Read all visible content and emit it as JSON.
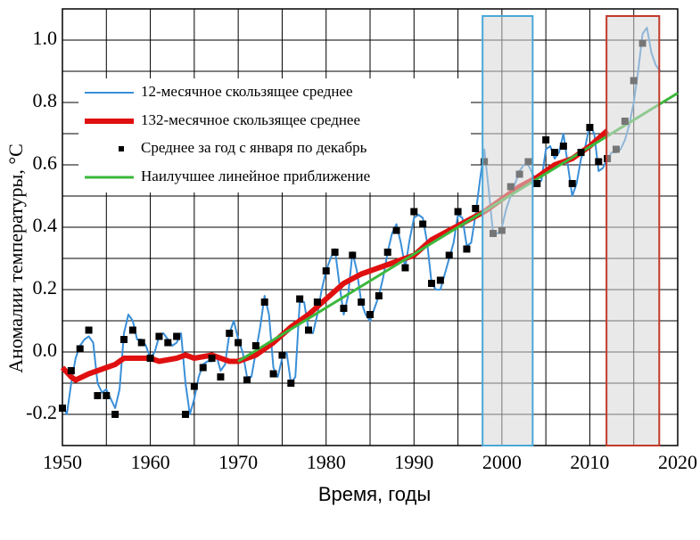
{
  "chart_data": {
    "type": "line",
    "xlabel": "Время, годы",
    "ylabel": "Аномалии температуры, °C",
    "xlim": [
      1950,
      2020
    ],
    "ylim": [
      -0.3,
      1.1
    ],
    "xticks": [
      1950,
      1960,
      1970,
      1980,
      1990,
      2000,
      2010,
      2020
    ],
    "yticks": [
      -0.2,
      {
        "value": 0,
        "label": "0.0"
      },
      0.2,
      0.4,
      0.6,
      0.8,
      {
        "value": 1,
        "label": "1.0"
      }
    ],
    "xgrid": [
      1955,
      1965,
      1975,
      1985,
      1995,
      2005,
      2015
    ],
    "ygrid": [
      -0.1,
      0.1,
      0.3,
      0.5,
      0.7,
      0.9
    ],
    "grid": true,
    "legend": "upper left",
    "highlights": [
      {
        "range": [
          1997.8,
          2003.5
        ],
        "color": "#4aa8d8"
      },
      {
        "range": [
          2011.9,
          2017.9
        ],
        "color": "#c0392b"
      }
    ],
    "series": [
      {
        "name": "12-месячное скользящее среднее",
        "color": "#3a8fd8",
        "style": "line",
        "line_width": 2,
        "x": [
          1950,
          1950.5,
          1951,
          1951.5,
          1952,
          1952.5,
          1953,
          1953.5,
          1954,
          1954.5,
          1955,
          1955.5,
          1956,
          1956.5,
          1957,
          1957.5,
          1958,
          1958.5,
          1959,
          1959.5,
          1960,
          1960.5,
          1961,
          1961.5,
          1962,
          1962.5,
          1963,
          1963.5,
          1964,
          1964.5,
          1965,
          1965.5,
          1966,
          1966.5,
          1967,
          1967.5,
          1968,
          1968.5,
          1969,
          1969.5,
          1970,
          1970.5,
          1971,
          1971.5,
          1972,
          1972.5,
          1973,
          1973.5,
          1974,
          1974.5,
          1975,
          1975.5,
          1976,
          1976.5,
          1977,
          1977.5,
          1978,
          1978.5,
          1979,
          1979.5,
          1980,
          1980.5,
          1981,
          1981.5,
          1982,
          1982.5,
          1983,
          1983.5,
          1984,
          1984.5,
          1985,
          1985.5,
          1986,
          1986.5,
          1987,
          1987.5,
          1988,
          1988.5,
          1989,
          1989.5,
          1990,
          1990.5,
          1991,
          1991.5,
          1992,
          1992.5,
          1993,
          1993.5,
          1994,
          1994.5,
          1995,
          1995.5,
          1996,
          1996.5,
          1997,
          1997.5,
          1998,
          1998.5,
          1999,
          1999.5,
          2000,
          2000.5,
          2001,
          2001.5,
          2002,
          2002.5,
          2003,
          2003.5,
          2004,
          2004.5,
          2005,
          2005.5,
          2006,
          2006.5,
          2007,
          2007.5,
          2008,
          2008.5,
          2009,
          2009.5,
          2010,
          2010.5,
          2011,
          2011.5,
          2012,
          2012.5,
          2013,
          2013.5,
          2014,
          2014.5,
          2015,
          2015.5,
          2016,
          2016.5,
          2017,
          2017.5,
          2018
        ],
        "values": [
          -0.17,
          -0.2,
          -0.1,
          -0.02,
          0.02,
          0.04,
          0.05,
          0.03,
          -0.1,
          -0.13,
          -0.12,
          -0.15,
          -0.18,
          -0.12,
          0.06,
          0.12,
          0.1,
          0.04,
          0.04,
          0.02,
          -0.02,
          0,
          0.05,
          0.06,
          0.04,
          0.02,
          0.03,
          0.06,
          -0.1,
          -0.2,
          -0.15,
          -0.08,
          -0.04,
          -0.03,
          -0.03,
          -0.01,
          -0.06,
          -0.04,
          0.06,
          0.1,
          0.04,
          0,
          -0.08,
          -0.08,
          0,
          0.08,
          0.18,
          0.12,
          -0.05,
          -0.08,
          -0.02,
          0,
          -0.1,
          -0.08,
          0.16,
          0.16,
          0.07,
          0.06,
          0.12,
          0.2,
          0.26,
          0.3,
          0.33,
          0.22,
          0.12,
          0.18,
          0.32,
          0.26,
          0.16,
          0.12,
          0.1,
          0.14,
          0.18,
          0.24,
          0.32,
          0.38,
          0.41,
          0.35,
          0.27,
          0.36,
          0.43,
          0.44,
          0.43,
          0.35,
          0.22,
          0.2,
          0.2,
          0.25,
          0.3,
          0.35,
          0.44,
          0.43,
          0.34,
          0.35,
          0.44,
          0.55,
          0.65,
          0.52,
          0.38,
          0.38,
          0.4,
          0.46,
          0.5,
          0.54,
          0.58,
          0.6,
          0.6,
          0.57,
          0.54,
          0.55,
          0.65,
          0.66,
          0.62,
          0.64,
          0.7,
          0.6,
          0.5,
          0.54,
          0.62,
          0.66,
          0.73,
          0.7,
          0.58,
          0.59,
          0.62,
          0.64,
          0.64,
          0.65,
          0.68,
          0.73,
          0.8,
          0.9,
          1.02,
          1.04,
          0.96,
          0.92,
          0.9
        ]
      },
      {
        "name": "132-месячное скользящее среднее",
        "color": "#e01010",
        "style": "line",
        "line_width": 6,
        "x": [
          1950,
          1951,
          1951.5,
          1953,
          1955,
          1956,
          1957,
          1960,
          1961,
          1963,
          1964,
          1965,
          1967,
          1968,
          1969,
          1970,
          1972,
          1974,
          1976,
          1978,
          1980,
          1982,
          1984,
          1986,
          1988,
          1990,
          1992,
          1994,
          1996,
          1998,
          2000,
          2002,
          2004,
          2006,
          2008,
          2010,
          2012
        ],
        "values": [
          -0.05,
          -0.08,
          -0.09,
          -0.07,
          -0.05,
          -0.04,
          -0.02,
          -0.02,
          -0.03,
          -0.02,
          -0.01,
          -0.02,
          -0.01,
          -0.02,
          -0.03,
          -0.03,
          -0.01,
          0.03,
          0.08,
          0.12,
          0.17,
          0.22,
          0.25,
          0.27,
          0.29,
          0.31,
          0.36,
          0.39,
          0.42,
          0.45,
          0.49,
          0.53,
          0.56,
          0.6,
          0.62,
          0.66,
          0.71
        ]
      },
      {
        "name": "Среднее за год с января по декабрь",
        "color": "#000000",
        "style": "marker",
        "x": [
          1950,
          1951,
          1952,
          1953,
          1954,
          1955,
          1956,
          1957,
          1958,
          1959,
          1960,
          1961,
          1962,
          1963,
          1964,
          1965,
          1966,
          1967,
          1968,
          1969,
          1970,
          1971,
          1972,
          1973,
          1974,
          1975,
          1976,
          1977,
          1978,
          1979,
          1980,
          1981,
          1982,
          1983,
          1984,
          1985,
          1986,
          1987,
          1988,
          1989,
          1990,
          1991,
          1992,
          1993,
          1994,
          1995,
          1996,
          1997,
          1998,
          1999,
          2000,
          2001,
          2002,
          2003,
          2004,
          2005,
          2006,
          2007,
          2008,
          2009,
          2010,
          2011,
          2012,
          2013,
          2014,
          2015,
          2016
        ],
        "values": [
          -0.18,
          -0.06,
          0.01,
          0.07,
          -0.14,
          -0.14,
          -0.2,
          0.04,
          0.07,
          0.03,
          -0.02,
          0.05,
          0.03,
          0.05,
          -0.2,
          -0.11,
          -0.05,
          -0.02,
          -0.08,
          0.06,
          0.03,
          -0.09,
          0.02,
          0.16,
          -0.07,
          -0.01,
          -0.1,
          0.17,
          0.07,
          0.16,
          0.26,
          0.32,
          0.14,
          0.31,
          0.16,
          0.12,
          0.18,
          0.32,
          0.39,
          0.27,
          0.45,
          0.41,
          0.22,
          0.23,
          0.31,
          0.45,
          0.33,
          0.46,
          0.61,
          0.38,
          0.39,
          0.53,
          0.57,
          0.61,
          0.54,
          0.68,
          0.64,
          0.66,
          0.54,
          0.64,
          0.72,
          0.61,
          0.62,
          0.65,
          0.74,
          0.87,
          0.99
        ]
      },
      {
        "name": "Наилучшее линейное приближение",
        "color": "#3cb83c",
        "style": "line",
        "line_width": 3,
        "x": [
          1970,
          2020
        ],
        "values": [
          -0.03,
          0.83
        ]
      }
    ]
  }
}
